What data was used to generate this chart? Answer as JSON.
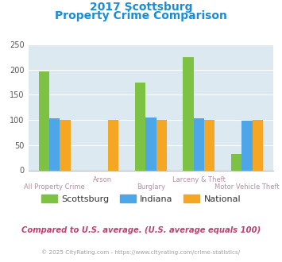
{
  "title_line1": "2017 Scottsburg",
  "title_line2": "Property Crime Comparison",
  "categories": [
    "All Property Crime",
    "Arson",
    "Burglary",
    "Larceny & Theft",
    "Motor Vehicle Theft"
  ],
  "scottsburg": [
    197,
    0,
    175,
    225,
    33
  ],
  "indiana": [
    103,
    0,
    105,
    103,
    98
  ],
  "national": [
    100,
    100,
    100,
    100,
    100
  ],
  "scottsburg_color": "#7dc242",
  "indiana_color": "#4da6e8",
  "national_color": "#f5a623",
  "ylim": [
    0,
    250
  ],
  "yticks": [
    0,
    50,
    100,
    150,
    200,
    250
  ],
  "bg_color": "#dce9f0",
  "fig_bg": "#ffffff",
  "title_color": "#1a8dd8",
  "xlabel_color": "#b090a0",
  "footer_text": "Compared to U.S. average. (U.S. average equals 100)",
  "footer_color": "#c04070",
  "copyright_text": "© 2025 CityRating.com - https://www.cityrating.com/crime-statistics/",
  "copyright_color": "#a0a0a0",
  "bar_width": 0.22
}
